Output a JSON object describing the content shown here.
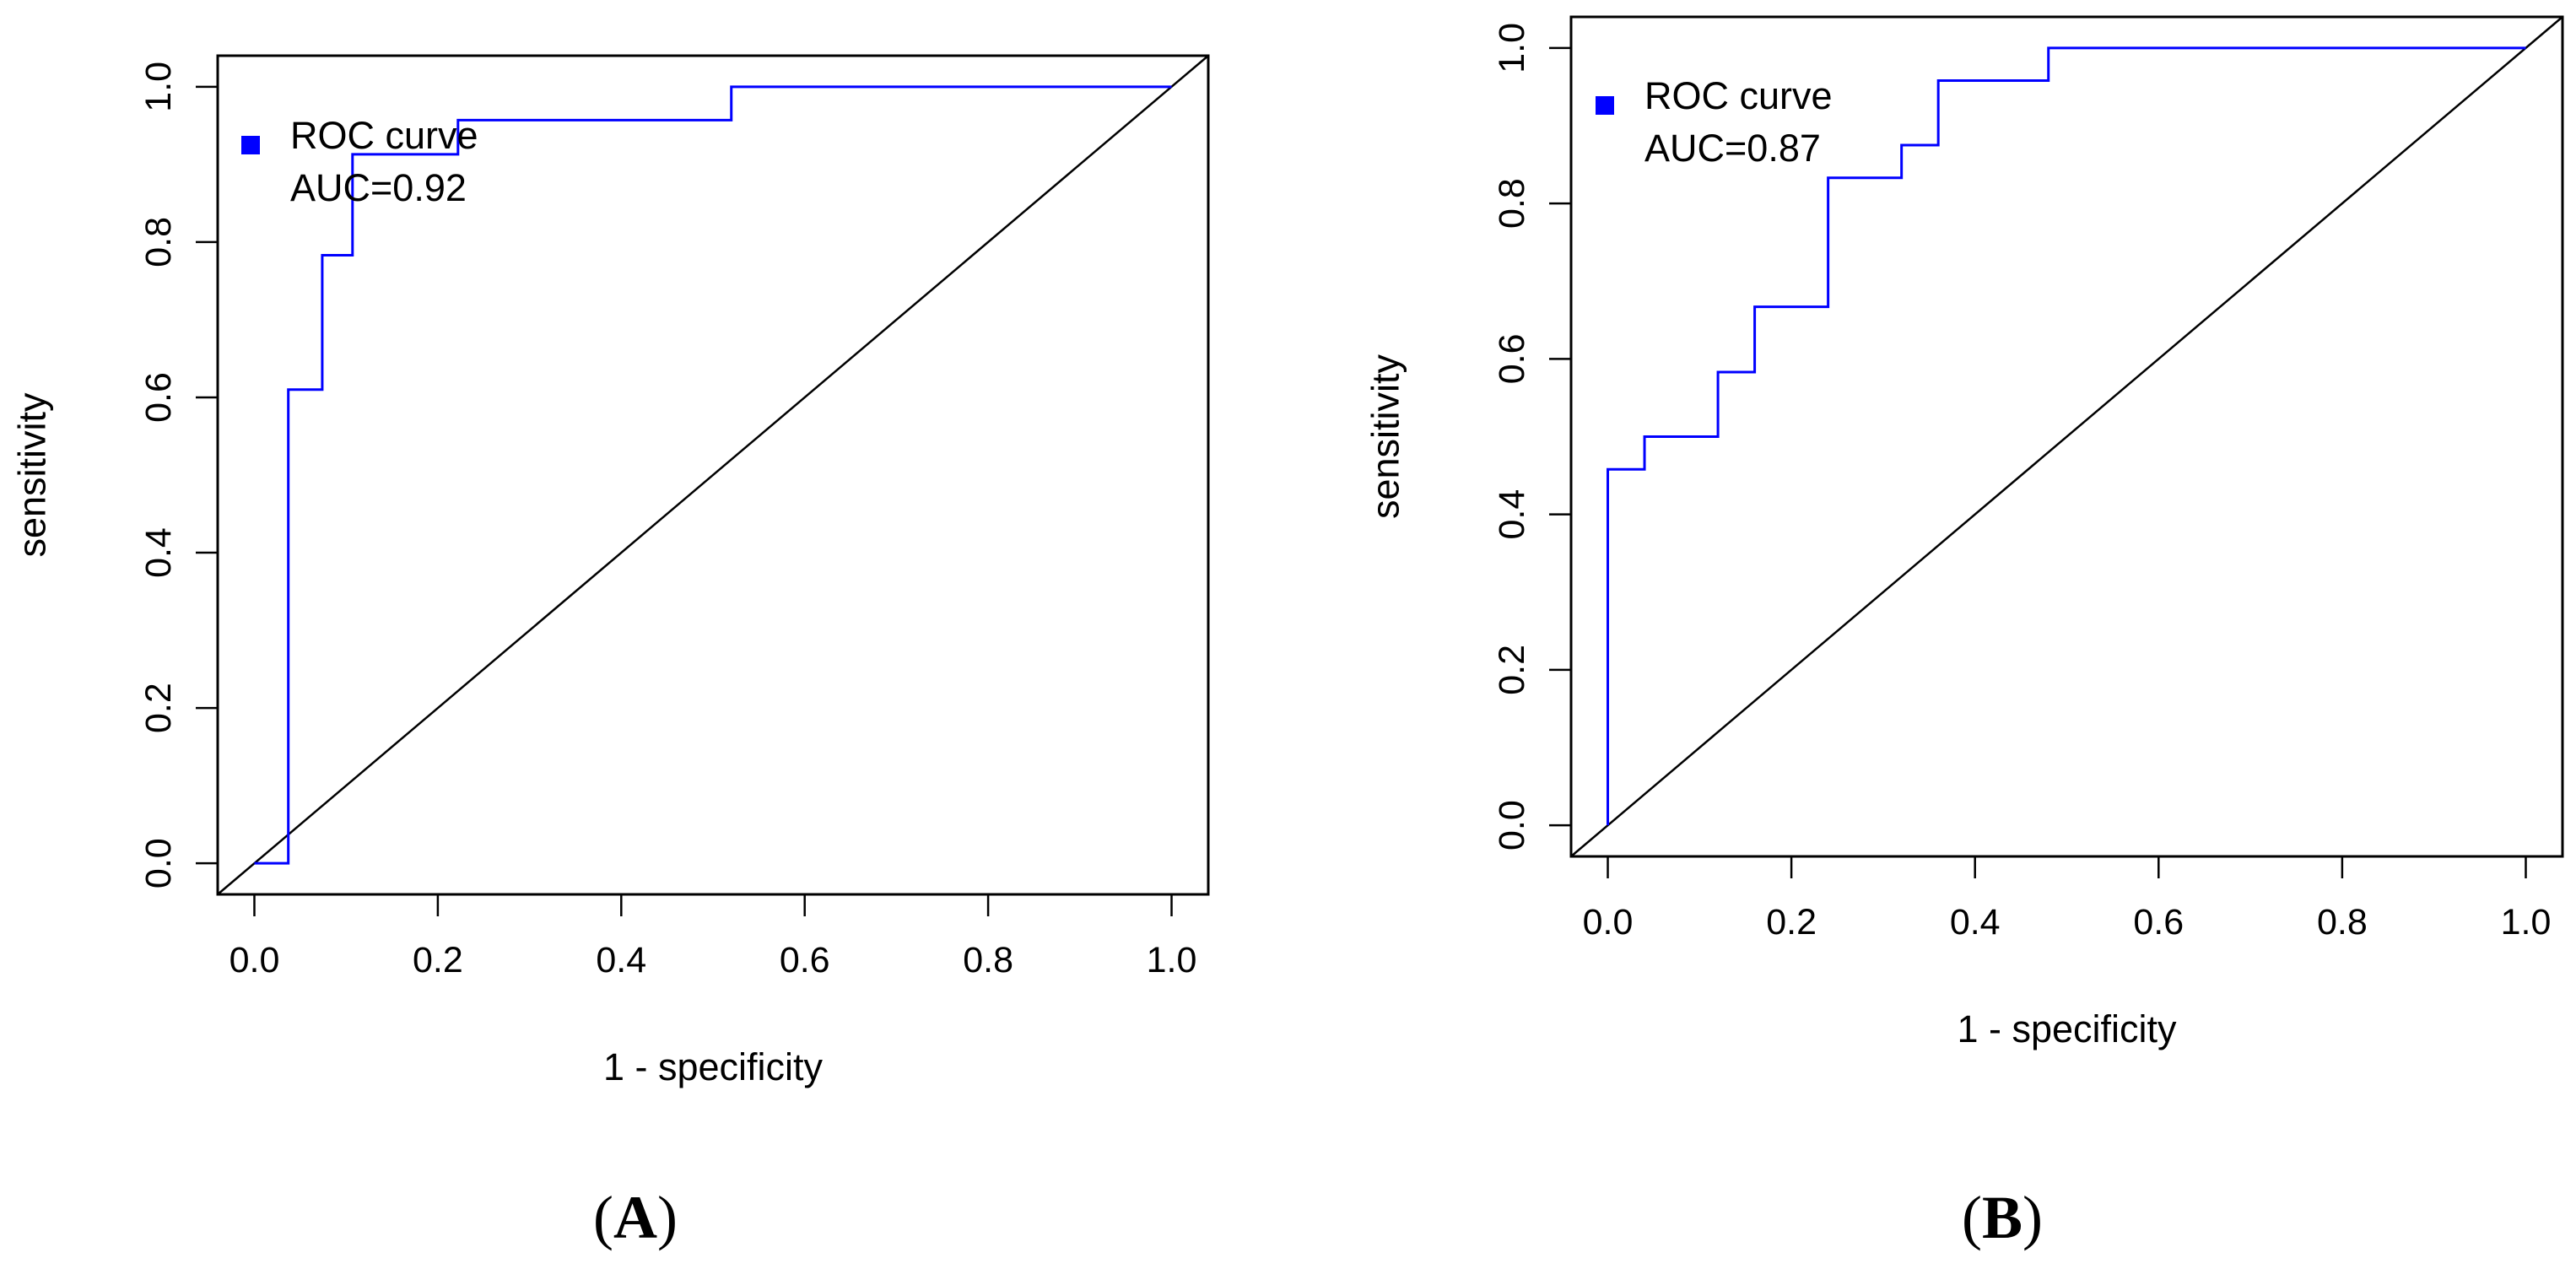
{
  "chart_data": [
    {
      "type": "line",
      "panel_label": "A",
      "xlabel": "1 - specificity",
      "ylabel": "sensitivity",
      "xlim": [
        -0.04,
        1.04
      ],
      "ylim": [
        -0.04,
        1.04
      ],
      "xticks": [
        0.0,
        0.2,
        0.4,
        0.6,
        0.8,
        1.0
      ],
      "yticks": [
        0.0,
        0.2,
        0.4,
        0.6,
        0.8,
        1.0
      ],
      "xtick_labels": [
        "0.0",
        "0.2",
        "0.4",
        "0.6",
        "0.8",
        "1.0"
      ],
      "ytick_labels": [
        "0.0",
        "0.2",
        "0.4",
        "0.6",
        "0.8",
        "1.0"
      ],
      "legend": {
        "position": "top-left",
        "lines": [
          "ROC curve",
          "AUC=0.92"
        ],
        "color": "#0000ff"
      },
      "series": [
        {
          "color": "#0000ff",
          "x": [
            0.0,
            0.037,
            0.037,
            0.074,
            0.074,
            0.107,
            0.107,
            0.222,
            0.222,
            0.52,
            0.52,
            1.0
          ],
          "y": [
            0.0,
            0.0,
            0.61,
            0.61,
            0.783,
            0.783,
            0.913,
            0.913,
            0.957,
            0.957,
            1.0,
            1.0
          ]
        }
      ],
      "reference_line": {
        "from": [
          -0.04,
          -0.04
        ],
        "to": [
          1.04,
          1.04
        ],
        "color": "#000000"
      }
    },
    {
      "type": "line",
      "panel_label": "B",
      "xlabel": "1 - specificity",
      "ylabel": "sensitivity",
      "xlim": [
        -0.04,
        1.04
      ],
      "ylim": [
        -0.04,
        1.04
      ],
      "xticks": [
        0.0,
        0.2,
        0.4,
        0.6,
        0.8,
        1.0
      ],
      "yticks": [
        0.0,
        0.2,
        0.4,
        0.6,
        0.8,
        1.0
      ],
      "xtick_labels": [
        "0.0",
        "0.2",
        "0.4",
        "0.6",
        "0.8",
        "1.0"
      ],
      "ytick_labels": [
        "0.0",
        "0.2",
        "0.4",
        "0.6",
        "0.8",
        "1.0"
      ],
      "legend": {
        "position": "top-left",
        "lines": [
          "ROC curve",
          "AUC=0.87"
        ],
        "color": "#0000ff"
      },
      "series": [
        {
          "color": "#0000ff",
          "x": [
            0.0,
            0.0,
            0.04,
            0.04,
            0.12,
            0.12,
            0.16,
            0.16,
            0.24,
            0.24,
            0.32,
            0.32,
            0.36,
            0.36,
            0.48,
            0.48,
            1.0
          ],
          "y": [
            0.0,
            0.458,
            0.458,
            0.5,
            0.5,
            0.583,
            0.583,
            0.667,
            0.667,
            0.833,
            0.833,
            0.875,
            0.875,
            0.958,
            0.958,
            1.0,
            1.0
          ]
        }
      ],
      "reference_line": {
        "from": [
          -0.04,
          -0.04
        ],
        "to": [
          1.04,
          1.04
        ],
        "color": "#000000"
      }
    }
  ]
}
